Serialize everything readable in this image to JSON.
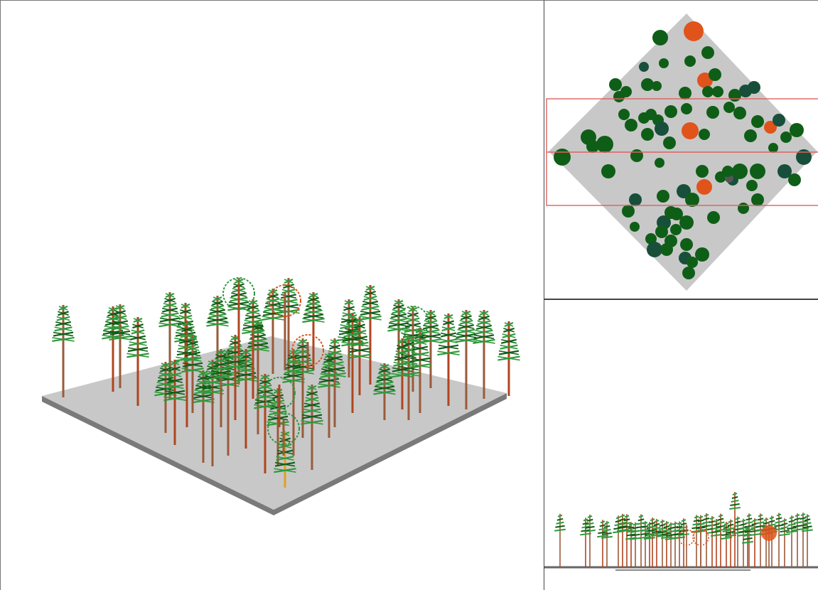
{
  "colors": {
    "ground": "#c8c8c8",
    "ground_edge": "#7a7a7a",
    "trunk": "#9a5a3a",
    "trunk_alt": "#b0441f",
    "trunk_yellow": "#e0a020",
    "crown_green": "#0f5e17",
    "crown_dark": "#174f3b",
    "crown_light": "#2e9a3a",
    "crown_orange": "#e0531b",
    "selection_box": "#e06060",
    "gray_crown": "#555555"
  },
  "views": {
    "perspective": {
      "name": "3d-perspective-view",
      "interactive": true
    },
    "top": {
      "name": "top-view",
      "interactive": true
    },
    "side": {
      "name": "side-view",
      "interactive": true
    }
  }
}
